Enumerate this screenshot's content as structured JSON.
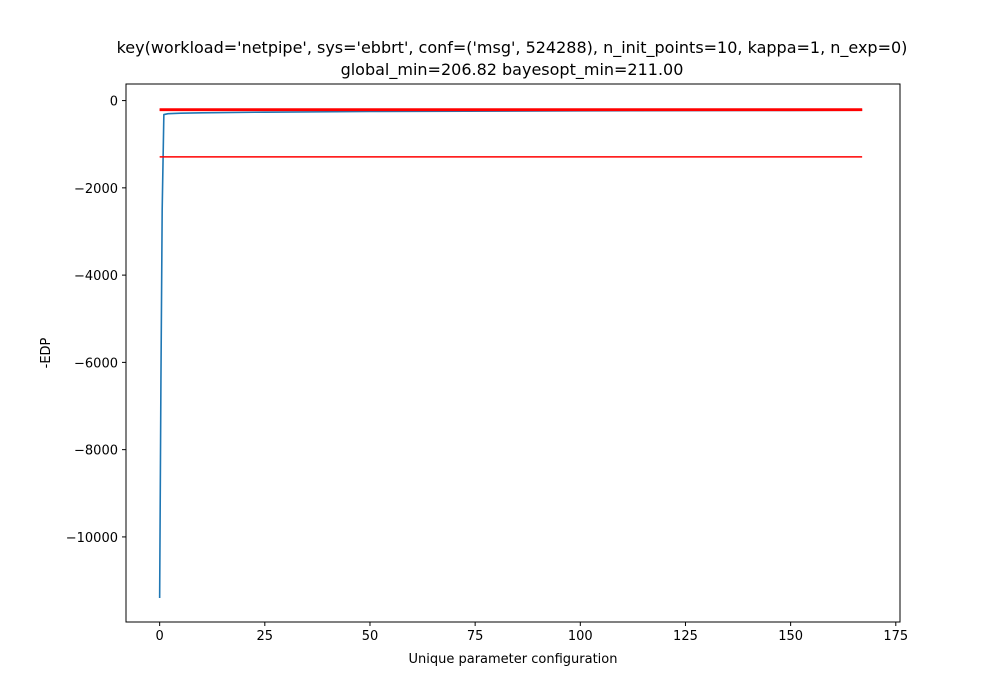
{
  "chart_data": {
    "type": "line",
    "title": "key(workload='netpipe', sys='ebbrt', conf=('msg', 524288), n_init_points=10, kappa=1, n_exp=0)",
    "subtitle": "global_min=206.82 bayesopt_min=211.00",
    "xlabel": "Unique parameter configuration",
    "ylabel": "-EDP",
    "xlim": [
      -8,
      176
    ],
    "ylim": [
      -11950,
      380
    ],
    "xticks": [
      0,
      25,
      50,
      75,
      100,
      125,
      150,
      175
    ],
    "yticks": [
      0,
      -2000,
      -4000,
      -6000,
      -8000,
      -10000
    ],
    "xtick_labels": [
      "0",
      "25",
      "50",
      "75",
      "100",
      "125",
      "150",
      "175"
    ],
    "ytick_labels": [
      "0",
      "−2000",
      "−4000",
      "−6000",
      "−8000",
      "−10000"
    ],
    "grid": false,
    "series": [
      {
        "role": "observed",
        "color": "#1f77b4",
        "x": [
          0,
          0.3,
          0.6,
          1,
          2,
          5,
          10,
          25,
          50,
          100,
          150,
          167
        ],
        "y": [
          -11400,
          -6500,
          -2500,
          -320,
          -300,
          -290,
          -280,
          -265,
          -250,
          -235,
          -225,
          -220
        ]
      },
      {
        "role": "bayesopt_min",
        "color": "#ff0000",
        "x": [
          0,
          167
        ],
        "y": [
          -211.0,
          -211.0
        ]
      },
      {
        "role": "global_min",
        "color": "#ff0000",
        "x": [
          0,
          167
        ],
        "y": [
          -206.82,
          -206.82
        ]
      },
      {
        "role": "reference",
        "color": "#ff0000",
        "x": [
          0,
          167
        ],
        "y": [
          -1290,
          -1290
        ]
      }
    ]
  }
}
